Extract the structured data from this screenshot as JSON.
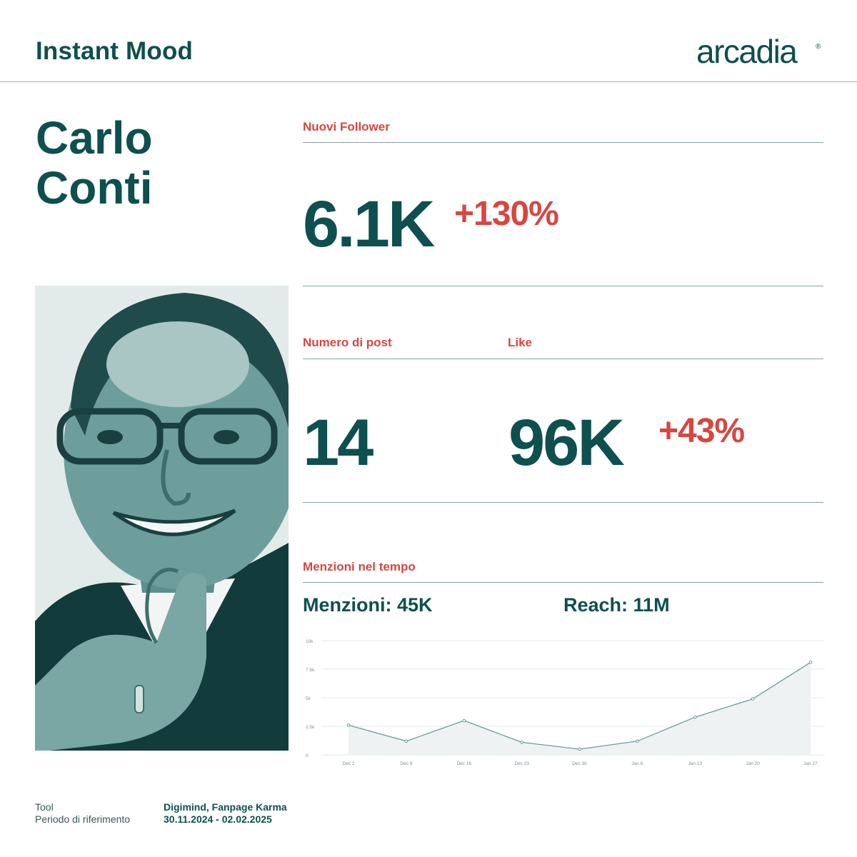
{
  "header": {
    "title": "Instant Mood",
    "logo_text": "arcadia",
    "logo_mark": "®"
  },
  "person": {
    "first_name": "Carlo",
    "last_name": "Conti"
  },
  "metrics": {
    "followers": {
      "label": "Nuovi Follower",
      "value": "6.1K",
      "delta": "+130%"
    },
    "posts": {
      "label": "Numero di post",
      "value": "14"
    },
    "likes": {
      "label": "Like",
      "value": "96K",
      "delta": "+43%"
    }
  },
  "mentions": {
    "label": "Menzioni nel tempo",
    "menzioni": "Menzioni: 45K",
    "reach": "Reach: 11M"
  },
  "chart_data": {
    "type": "area",
    "x": [
      "Dec 2",
      "Dec 9",
      "Dec 16",
      "Dec 23",
      "Dec 30",
      "Jan 6",
      "Jan 13",
      "Jan 20",
      "Jan 27"
    ],
    "values": [
      2600,
      1200,
      3000,
      1100,
      500,
      1200,
      3300,
      4900,
      8100
    ],
    "y_ticks": [
      0,
      2500,
      5000,
      7500,
      10000
    ],
    "y_tick_labels": [
      "0",
      "2.5k",
      "5k",
      "7.5k",
      "10k"
    ],
    "ylim": [
      0,
      10000
    ],
    "grid": true,
    "line_color": "#6f9a9b",
    "fill_color": "#eef2f3",
    "title": "",
    "xlabel": "",
    "ylabel": ""
  },
  "footer": {
    "tool_label": "Tool",
    "tool_value": "Digimind, Fanpage Karma",
    "period_label": "Periodo di riferimento",
    "period_value": "30.11.2024 - 02.02.2025"
  },
  "colors": {
    "brand": "#0e4f4f",
    "accent": "#d9453f",
    "photo_tint": "#2f7a78"
  }
}
